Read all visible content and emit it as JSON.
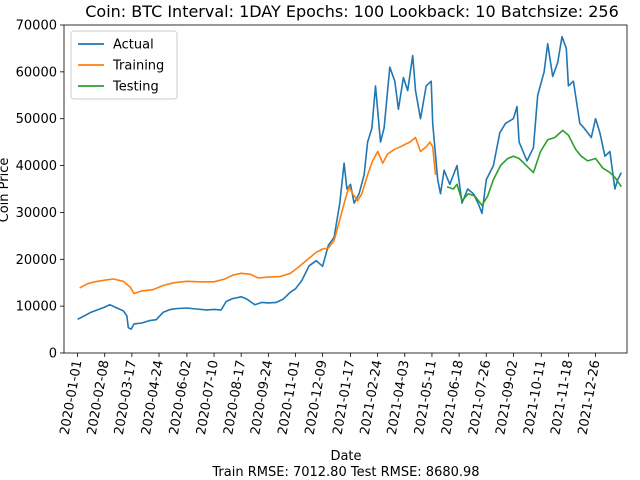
{
  "chart_data": {
    "type": "line",
    "title": "Coin: BTC Interval: 1DAY Epochs: 100 Lookback: 10 Batchsize: 256",
    "xlabel": "Date",
    "ylabel": "Coin Price",
    "footer": "Train RMSE: 7012.80 Test RMSE: 8680.98",
    "xlim": [
      "2019-12-13",
      "2022-02-08"
    ],
    "ylim": [
      0,
      70000
    ],
    "y_ticks": [
      0,
      10000,
      20000,
      30000,
      40000,
      50000,
      60000,
      70000
    ],
    "y_tick_labels": [
      "0",
      "10000",
      "20000",
      "30000",
      "40000",
      "50000",
      "60000",
      "70000"
    ],
    "x_ticks": [
      "2020-01-01",
      "2020-02-08",
      "2020-03-17",
      "2020-04-24",
      "2020-06-02",
      "2020-07-10",
      "2020-08-17",
      "2020-09-24",
      "2020-11-01",
      "2020-12-09",
      "2021-01-17",
      "2021-02-24",
      "2021-04-03",
      "2021-05-11",
      "2021-06-18",
      "2021-07-26",
      "2021-09-02",
      "2021-10-11",
      "2021-11-18",
      "2021-12-26"
    ],
    "legend_position": "top-left",
    "grid": false,
    "series": [
      {
        "name": "Actual",
        "color": "#1f77b4",
        "points": [
          [
            "2020-01-01",
            7200
          ],
          [
            "2020-01-10",
            7900
          ],
          [
            "2020-01-20",
            8700
          ],
          [
            "2020-02-01",
            9400
          ],
          [
            "2020-02-08",
            9800
          ],
          [
            "2020-02-15",
            10300
          ],
          [
            "2020-02-25",
            9600
          ],
          [
            "2020-03-05",
            9000
          ],
          [
            "2020-03-10",
            7900
          ],
          [
            "2020-03-12",
            5400
          ],
          [
            "2020-03-16",
            5100
          ],
          [
            "2020-03-20",
            6200
          ],
          [
            "2020-03-31",
            6400
          ],
          [
            "2020-04-10",
            6900
          ],
          [
            "2020-04-20",
            7100
          ],
          [
            "2020-04-30",
            8700
          ],
          [
            "2020-05-10",
            9300
          ],
          [
            "2020-05-20",
            9500
          ],
          [
            "2020-06-02",
            9600
          ],
          [
            "2020-06-15",
            9400
          ],
          [
            "2020-06-30",
            9200
          ],
          [
            "2020-07-10",
            9300
          ],
          [
            "2020-07-20",
            9200
          ],
          [
            "2020-07-27",
            11000
          ],
          [
            "2020-08-05",
            11600
          ],
          [
            "2020-08-17",
            12000
          ],
          [
            "2020-08-25",
            11500
          ],
          [
            "2020-09-05",
            10300
          ],
          [
            "2020-09-15",
            10800
          ],
          [
            "2020-09-24",
            10700
          ],
          [
            "2020-10-05",
            10800
          ],
          [
            "2020-10-15",
            11500
          ],
          [
            "2020-10-25",
            13000
          ],
          [
            "2020-11-01",
            13700
          ],
          [
            "2020-11-10",
            15500
          ],
          [
            "2020-11-20",
            18600
          ],
          [
            "2020-11-30",
            19700
          ],
          [
            "2020-12-09",
            18500
          ],
          [
            "2020-12-17",
            23000
          ],
          [
            "2020-12-25",
            24700
          ],
          [
            "2021-01-02",
            32000
          ],
          [
            "2021-01-08",
            40500
          ],
          [
            "2021-01-12",
            35000
          ],
          [
            "2021-01-17",
            36000
          ],
          [
            "2021-01-22",
            32000
          ],
          [
            "2021-01-29",
            34000
          ],
          [
            "2021-02-05",
            38000
          ],
          [
            "2021-02-10",
            45000
          ],
          [
            "2021-02-16",
            48000
          ],
          [
            "2021-02-21",
            57000
          ],
          [
            "2021-02-28",
            45000
          ],
          [
            "2021-03-05",
            48000
          ],
          [
            "2021-03-13",
            61000
          ],
          [
            "2021-03-20",
            58000
          ],
          [
            "2021-03-25",
            52000
          ],
          [
            "2021-04-01",
            58800
          ],
          [
            "2021-04-07",
            56000
          ],
          [
            "2021-04-14",
            63500
          ],
          [
            "2021-04-18",
            56000
          ],
          [
            "2021-04-25",
            50000
          ],
          [
            "2021-05-03",
            57000
          ],
          [
            "2021-05-10",
            58000
          ],
          [
            "2021-05-12",
            49000
          ],
          [
            "2021-05-19",
            37000
          ],
          [
            "2021-05-23",
            34000
          ],
          [
            "2021-05-28",
            39000
          ],
          [
            "2021-06-05",
            36000
          ],
          [
            "2021-06-15",
            40000
          ],
          [
            "2021-06-22",
            32000
          ],
          [
            "2021-06-30",
            35000
          ],
          [
            "2021-07-08",
            34000
          ],
          [
            "2021-07-15",
            31800
          ],
          [
            "2021-07-20",
            29800
          ],
          [
            "2021-07-26",
            37000
          ],
          [
            "2021-08-05",
            40000
          ],
          [
            "2021-08-14",
            47000
          ],
          [
            "2021-08-22",
            49000
          ],
          [
            "2021-09-02",
            50000
          ],
          [
            "2021-09-07",
            52600
          ],
          [
            "2021-09-10",
            45000
          ],
          [
            "2021-09-21",
            41000
          ],
          [
            "2021-09-30",
            43800
          ],
          [
            "2021-10-06",
            55000
          ],
          [
            "2021-10-15",
            60000
          ],
          [
            "2021-10-20",
            66000
          ],
          [
            "2021-10-27",
            59000
          ],
          [
            "2021-11-03",
            62000
          ],
          [
            "2021-11-09",
            67500
          ],
          [
            "2021-11-15",
            65000
          ],
          [
            "2021-11-18",
            57000
          ],
          [
            "2021-11-25",
            58000
          ],
          [
            "2021-12-04",
            49000
          ],
          [
            "2021-12-10",
            48000
          ],
          [
            "2021-12-20",
            46000
          ],
          [
            "2021-12-26",
            50000
          ],
          [
            "2022-01-01",
            47000
          ],
          [
            "2022-01-08",
            42000
          ],
          [
            "2022-01-15",
            43000
          ],
          [
            "2022-01-22",
            35000
          ],
          [
            "2022-01-26",
            37000
          ],
          [
            "2022-01-31",
            38500
          ]
        ]
      },
      {
        "name": "Training",
        "color": "#ff7f0e",
        "points": [
          [
            "2020-01-04",
            13900
          ],
          [
            "2020-01-15",
            14800
          ],
          [
            "2020-01-25",
            15200
          ],
          [
            "2020-02-10",
            15600
          ],
          [
            "2020-02-20",
            15800
          ],
          [
            "2020-03-05",
            15300
          ],
          [
            "2020-03-15",
            14000
          ],
          [
            "2020-03-20",
            12700
          ],
          [
            "2020-03-30",
            13200
          ],
          [
            "2020-04-15",
            13500
          ],
          [
            "2020-04-30",
            14400
          ],
          [
            "2020-05-15",
            15000
          ],
          [
            "2020-06-02",
            15300
          ],
          [
            "2020-06-20",
            15200
          ],
          [
            "2020-07-10",
            15200
          ],
          [
            "2020-07-25",
            15800
          ],
          [
            "2020-08-05",
            16600
          ],
          [
            "2020-08-17",
            17000
          ],
          [
            "2020-08-30",
            16800
          ],
          [
            "2020-09-10",
            16000
          ],
          [
            "2020-09-24",
            16200
          ],
          [
            "2020-10-10",
            16300
          ],
          [
            "2020-10-25",
            17000
          ],
          [
            "2020-11-05",
            18300
          ],
          [
            "2020-11-20",
            20200
          ],
          [
            "2020-11-30",
            21500
          ],
          [
            "2020-12-09",
            22200
          ],
          [
            "2020-12-17",
            22400
          ],
          [
            "2020-12-25",
            24000
          ],
          [
            "2021-01-03",
            29000
          ],
          [
            "2021-01-10",
            33000
          ],
          [
            "2021-01-15",
            35500
          ],
          [
            "2021-01-20",
            34000
          ],
          [
            "2021-01-27",
            32500
          ],
          [
            "2021-02-02",
            34000
          ],
          [
            "2021-02-10",
            38000
          ],
          [
            "2021-02-17",
            41000
          ],
          [
            "2021-02-24",
            43000
          ],
          [
            "2021-03-03",
            40500
          ],
          [
            "2021-03-10",
            42500
          ],
          [
            "2021-03-20",
            43500
          ],
          [
            "2021-03-28",
            44000
          ],
          [
            "2021-04-03",
            44500
          ],
          [
            "2021-04-10",
            45000
          ],
          [
            "2021-04-18",
            46000
          ],
          [
            "2021-04-25",
            43000
          ],
          [
            "2021-05-03",
            44000
          ],
          [
            "2021-05-08",
            45000
          ],
          [
            "2021-05-12",
            44000
          ],
          [
            "2021-05-16",
            38000
          ]
        ]
      },
      {
        "name": "Testing",
        "color": "#2ca02c",
        "points": [
          [
            "2021-06-01",
            35500
          ],
          [
            "2021-06-10",
            35000
          ],
          [
            "2021-06-15",
            36000
          ],
          [
            "2021-06-22",
            32500
          ],
          [
            "2021-07-01",
            34000
          ],
          [
            "2021-07-10",
            33500
          ],
          [
            "2021-07-20",
            31500
          ],
          [
            "2021-07-28",
            33500
          ],
          [
            "2021-08-05",
            37000
          ],
          [
            "2021-08-15",
            40000
          ],
          [
            "2021-08-25",
            41500
          ],
          [
            "2021-09-02",
            42000
          ],
          [
            "2021-09-10",
            41500
          ],
          [
            "2021-09-20",
            40000
          ],
          [
            "2021-09-30",
            38500
          ],
          [
            "2021-10-10",
            43000
          ],
          [
            "2021-10-20",
            45500
          ],
          [
            "2021-10-30",
            46000
          ],
          [
            "2021-11-10",
            47500
          ],
          [
            "2021-11-18",
            46500
          ],
          [
            "2021-11-28",
            43500
          ],
          [
            "2021-12-06",
            42000
          ],
          [
            "2021-12-15",
            41000
          ],
          [
            "2021-12-26",
            41500
          ],
          [
            "2022-01-05",
            39500
          ],
          [
            "2022-01-15",
            38500
          ],
          [
            "2022-01-22",
            37500
          ],
          [
            "2022-01-31",
            35500
          ]
        ]
      }
    ]
  }
}
